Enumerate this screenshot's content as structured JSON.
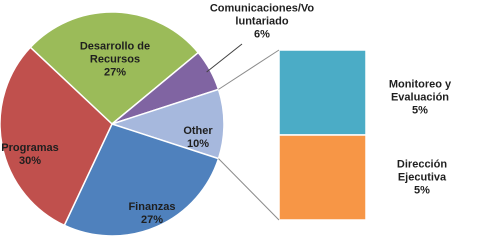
{
  "chart_data": {
    "type": "pie-of-bar",
    "categories": [
      "Desarrollo de\nRecursos",
      "Comunicaciones/Vo\nluntariado",
      "Other",
      "Finanzas",
      "Programas"
    ],
    "values": [
      27,
      6,
      10,
      27,
      30
    ],
    "value_labels": [
      "27%",
      "6%",
      "10%",
      "27%",
      "30%"
    ],
    "colors": [
      "#9bbb59",
      "#8064a2",
      "#a6b8dd",
      "#4f81bd",
      "#c0504d"
    ],
    "bar_categories": [
      "Monitoreo y\nEvaluación",
      "Dirección Ejecutiva"
    ],
    "bar_values": [
      5,
      5
    ],
    "bar_value_labels": [
      "5%",
      "5%"
    ],
    "bar_colors": [
      "#4bacc6",
      "#f79646"
    ]
  }
}
